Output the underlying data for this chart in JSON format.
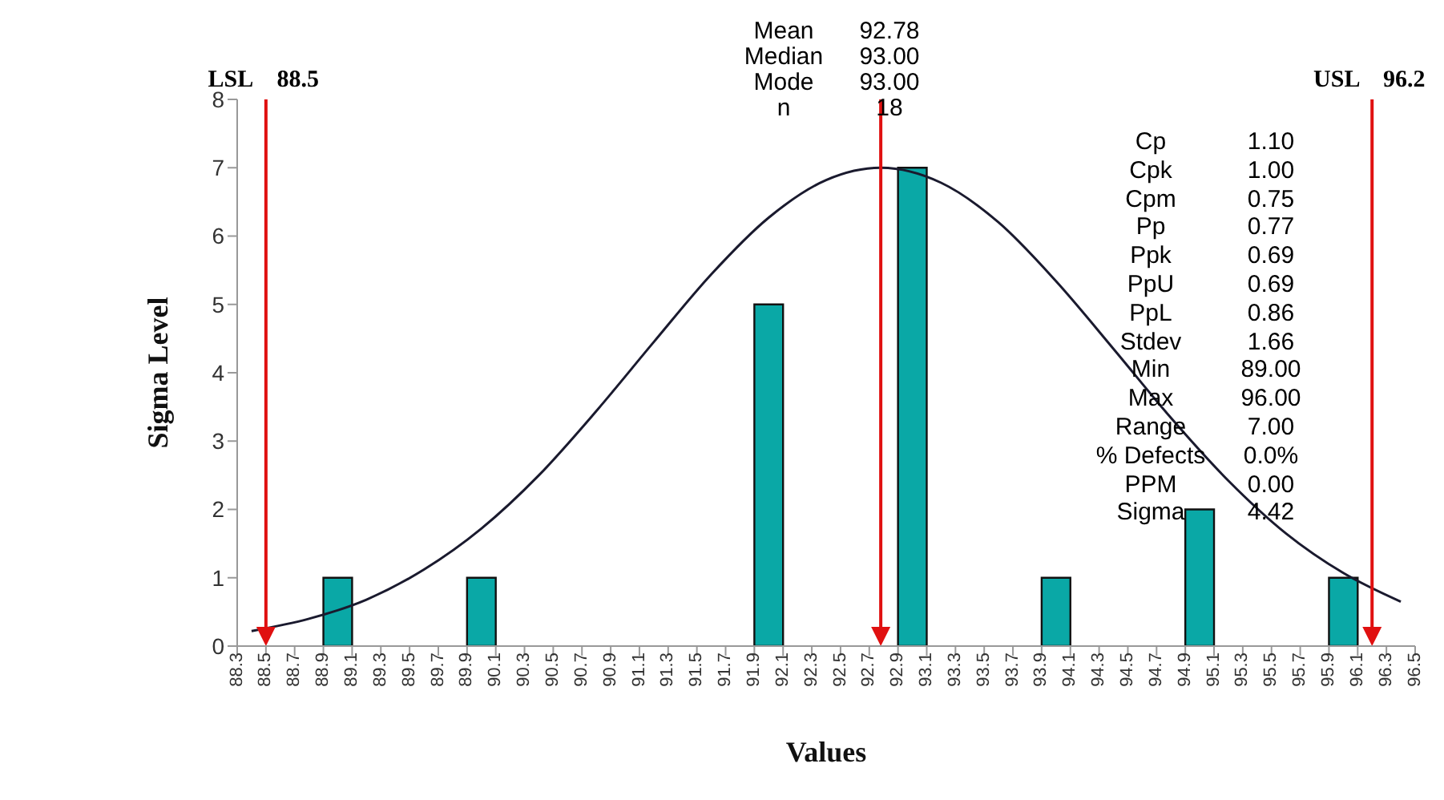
{
  "chart_data": {
    "type": "bar",
    "xlabel": "Values",
    "ylabel": "Sigma Level",
    "x": [
      89,
      90,
      92,
      93,
      94,
      95,
      96
    ],
    "series": [
      {
        "color": "#0aa8a6",
        "values": [
          1,
          1,
          5,
          7,
          1,
          2,
          1
        ]
      },
      {
        "type": "line",
        "color": "#1a1a2e",
        "x": [
          88.4,
          88.8,
          89.2,
          89.6,
          90.0,
          90.4,
          90.8,
          91.2,
          91.6,
          92.0,
          92.4,
          92.78,
          93.2,
          93.6,
          94.0,
          94.4,
          94.8,
          95.2,
          95.6,
          96.0,
          96.4
        ],
        "values": [
          0.22,
          0.4,
          0.68,
          1.12,
          1.72,
          2.5,
          3.44,
          4.45,
          5.44,
          6.27,
          6.82,
          7,
          6.78,
          6.2,
          5.34,
          4.35,
          3.34,
          2.42,
          1.65,
          1.07,
          0.65
        ]
      }
    ],
    "xlim": [
      88.3,
      96.5
    ],
    "xticks": [
      88.3,
      88.5,
      88.7,
      88.9,
      89.1,
      89.3,
      89.5,
      89.7,
      89.9,
      90.1,
      90.3,
      90.5,
      90.7,
      90.9,
      91.1,
      91.3,
      91.5,
      91.7,
      91.9,
      92.1,
      92.3,
      92.5,
      92.7,
      92.9,
      93.1,
      93.3,
      93.5,
      93.7,
      93.9,
      94.1,
      94.3,
      94.5,
      94.7,
      94.9,
      95.1,
      95.3,
      95.5,
      95.7,
      95.9,
      96.1,
      96.3,
      96.5
    ],
    "ylim": [
      0,
      8
    ],
    "yticks": [
      0,
      1,
      2,
      3,
      4,
      5,
      6,
      7,
      8
    ],
    "ref_lines": [
      {
        "axis": "x",
        "value": 88.5,
        "label": "LSL 88.5",
        "color": "#e01010"
      },
      {
        "axis": "x",
        "value": 92.78,
        "label": null,
        "color": "#e01010"
      },
      {
        "axis": "x",
        "value": 96.2,
        "label": "USL 96.2",
        "color": "#e01010"
      }
    ],
    "annotations": [
      "Mean 92.78",
      "Median 93.00",
      "Mode 93.00",
      "n 18",
      "Cp 1.10",
      "Cpk 1.00",
      "Cpm 0.75",
      "Pp 0.77",
      "Ppk 0.69",
      "PpU 0.69",
      "PpL 0.86",
      "Stdev 1.66",
      "Min 89.00",
      "Max 96.00",
      "Range 7.00",
      "% Defects 0.0%",
      "PPM 0.00",
      "Sigma 4.42"
    ],
    "grid": false,
    "legend": false,
    "marker": "none"
  }
}
